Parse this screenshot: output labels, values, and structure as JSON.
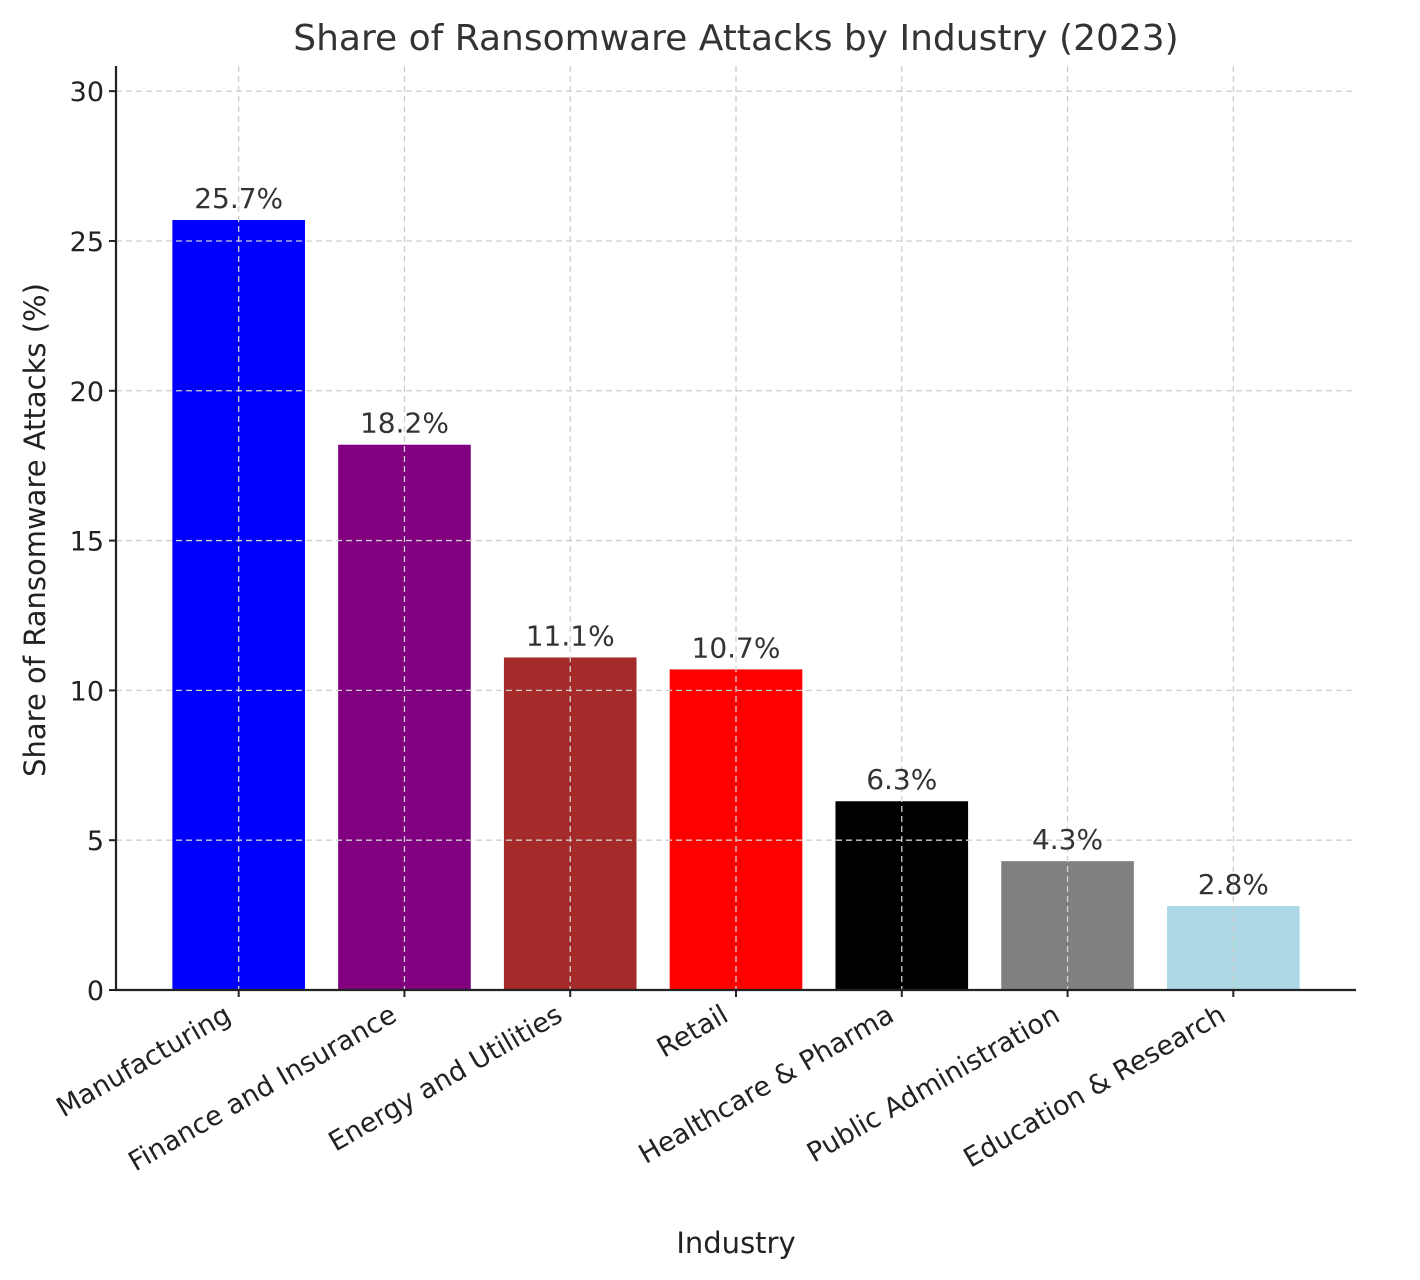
{
  "chart_data": {
    "type": "bar",
    "title": "Share of Ransomware Attacks by Industry (2023)",
    "xlabel": "Industry",
    "ylabel": "Share of Ransomware Attacks (%)",
    "categories": [
      "Manufacturing",
      "Finance and Insurance",
      "Energy and Utilities",
      "Retail",
      "Healthcare & Pharma",
      "Public Administration",
      "Education & Research"
    ],
    "values": [
      25.7,
      18.2,
      11.1,
      10.7,
      6.3,
      4.3,
      2.8
    ],
    "data_labels": [
      "25.7%",
      "18.2%",
      "11.1%",
      "10.7%",
      "6.3%",
      "4.3%",
      "2.8%"
    ],
    "colors": [
      "#0000ff",
      "#800080",
      "#a52a2a",
      "#ff0000",
      "#000000",
      "#808080",
      "#add8e6"
    ],
    "ylim": [
      0,
      30.84
    ],
    "yticks": [
      0,
      5,
      10,
      15,
      20,
      25,
      30
    ],
    "grid": true,
    "xtick_rotation_deg": 30
  }
}
